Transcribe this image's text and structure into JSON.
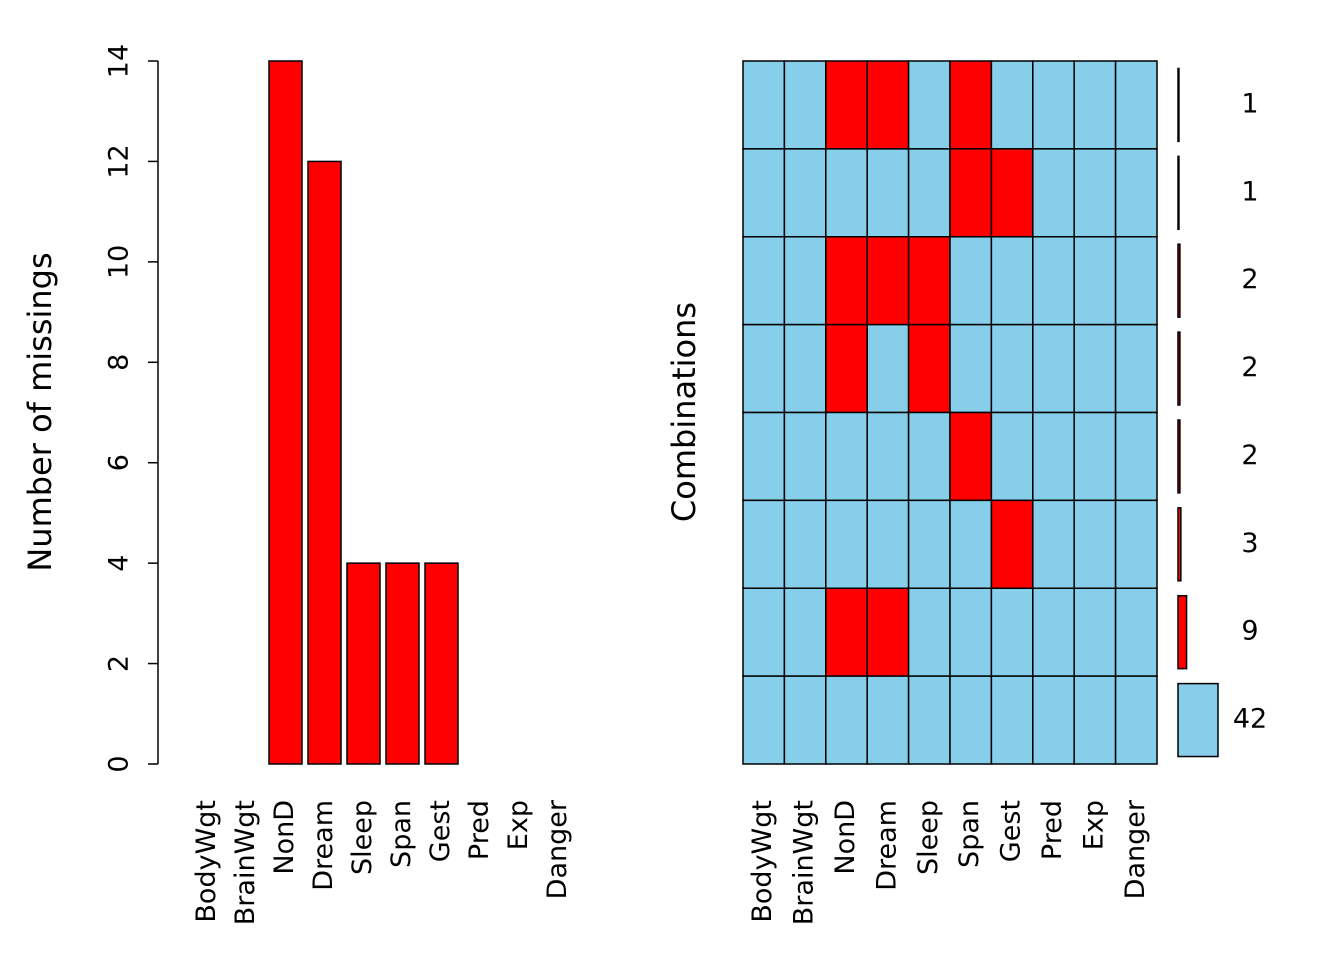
{
  "chart_data": [
    {
      "type": "bar",
      "y_label": "Number of missings",
      "categories": [
        "BodyWgt",
        "BrainWgt",
        "NonD",
        "Dream",
        "Sleep",
        "Span",
        "Gest",
        "Pred",
        "Exp",
        "Danger"
      ],
      "values": [
        0,
        0,
        14,
        12,
        4,
        4,
        4,
        0,
        0,
        0
      ],
      "color": "#ff0000",
      "ylim": [
        0,
        14
      ],
      "yticks": [
        0,
        2,
        4,
        6,
        8,
        10,
        12,
        14
      ]
    },
    {
      "type": "matrix",
      "y_label": "Combinations",
      "categories": [
        "BodyWgt",
        "BrainWgt",
        "NonD",
        "Dream",
        "Sleep",
        "Span",
        "Gest",
        "Pred",
        "Exp",
        "Danger"
      ],
      "patterns": [
        [
          0,
          0,
          1,
          1,
          0,
          1,
          0,
          0,
          0,
          0
        ],
        [
          0,
          0,
          0,
          0,
          0,
          1,
          1,
          0,
          0,
          0
        ],
        [
          0,
          0,
          1,
          1,
          1,
          0,
          0,
          0,
          0,
          0
        ],
        [
          0,
          0,
          1,
          0,
          1,
          0,
          0,
          0,
          0,
          0
        ],
        [
          0,
          0,
          0,
          0,
          0,
          1,
          0,
          0,
          0,
          0
        ],
        [
          0,
          0,
          0,
          0,
          0,
          0,
          1,
          0,
          0,
          0
        ],
        [
          0,
          0,
          1,
          1,
          0,
          0,
          0,
          0,
          0,
          0
        ],
        [
          0,
          0,
          0,
          0,
          0,
          0,
          0,
          0,
          0,
          0
        ]
      ],
      "counts": [
        1,
        1,
        2,
        2,
        2,
        3,
        9,
        42
      ],
      "colors": [
        "#87ceeb",
        "#ff0000"
      ]
    }
  ]
}
